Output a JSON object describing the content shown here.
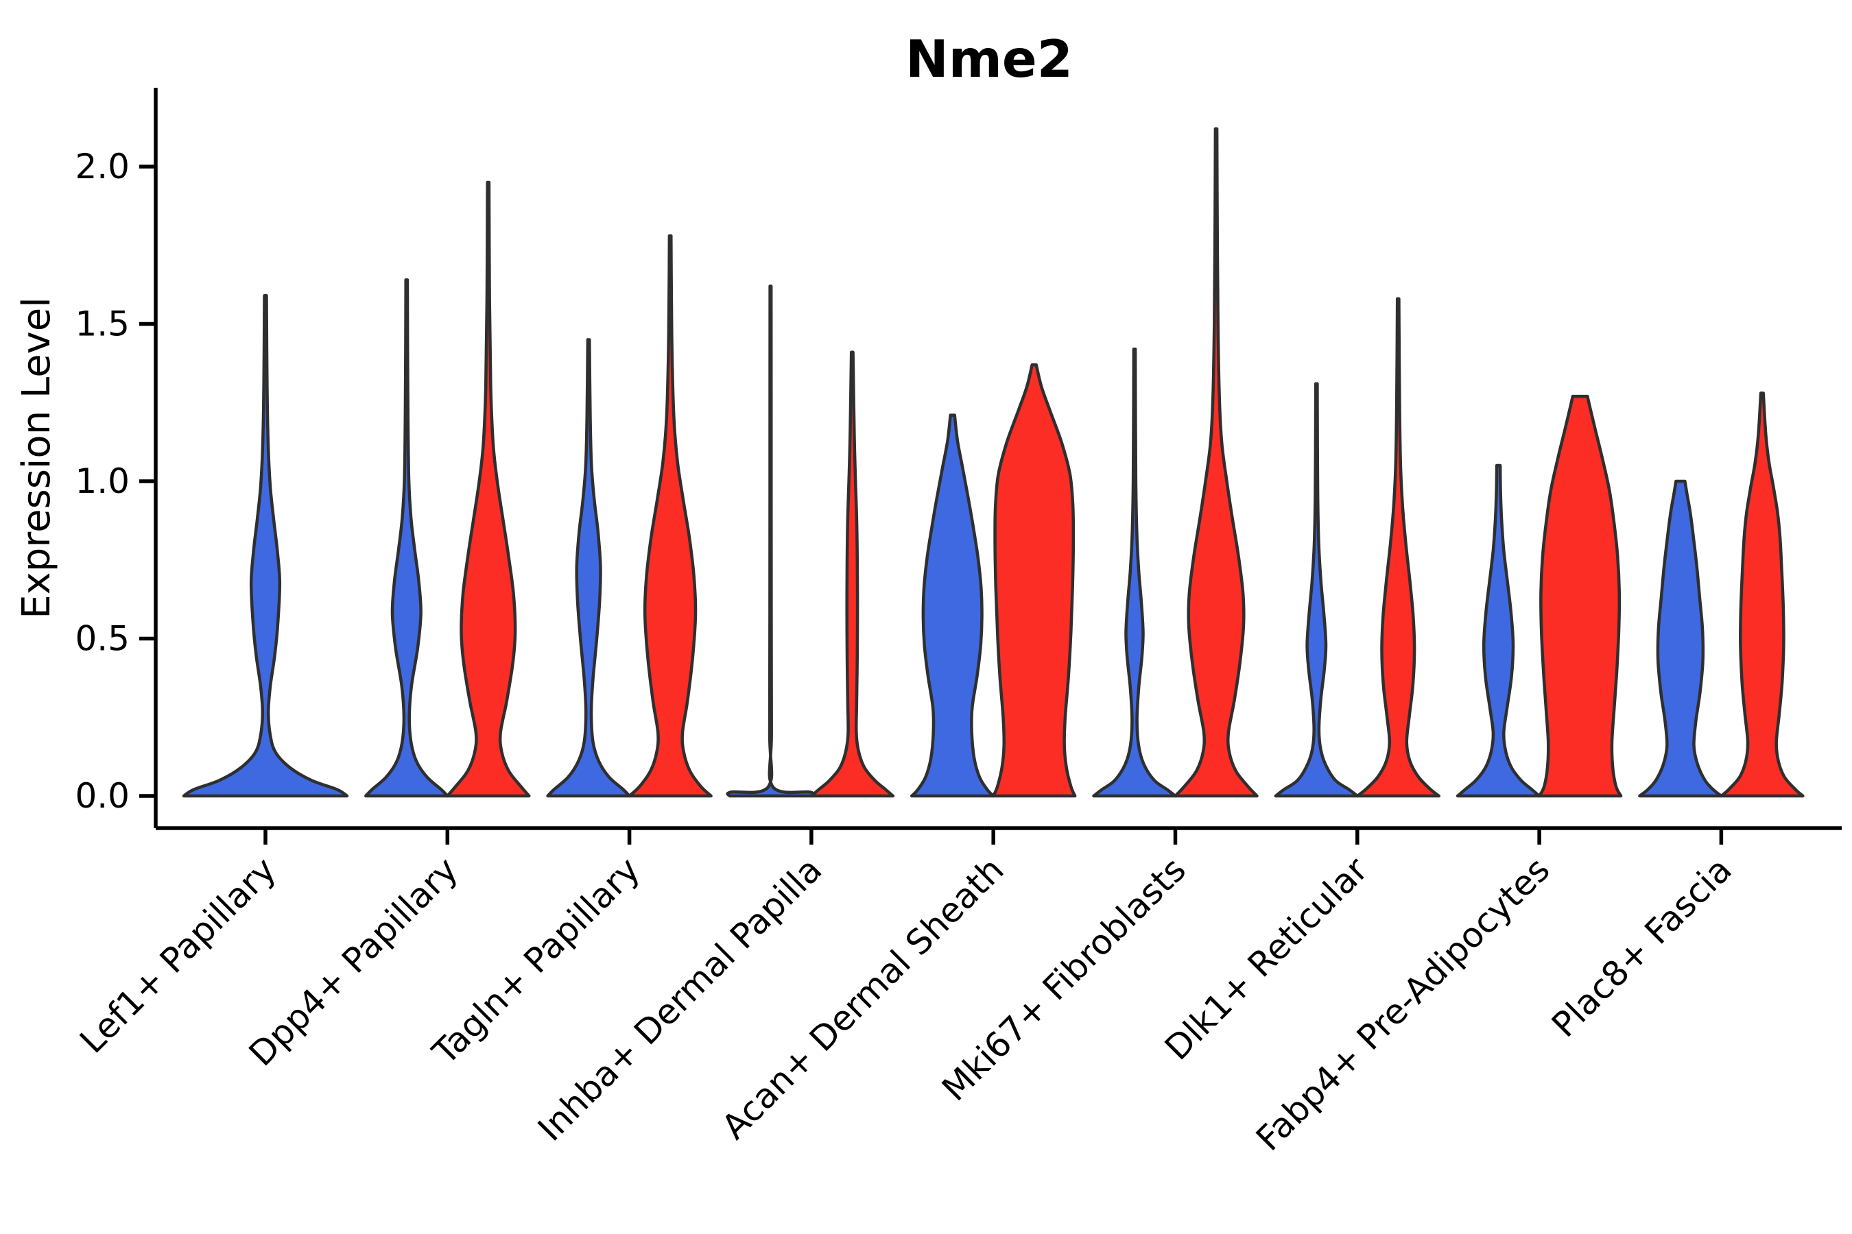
{
  "chart_data": {
    "type": "violin",
    "title": "Nme2",
    "ylabel": "Expression Level",
    "xlabel": "",
    "yticks": [
      0.0,
      0.5,
      1.0,
      1.5,
      2.0
    ],
    "ylim": [
      -0.1,
      2.25
    ],
    "grid": false,
    "legend": "none",
    "background": "#FFFFFF",
    "axis_color": "#000000",
    "outline_color": "#2F2F2F",
    "series": [
      {
        "name": "blue",
        "color": "#3F69E1"
      },
      {
        "name": "red",
        "color": "#FC2D25"
      }
    ],
    "categories": [
      "Lef1+ Papillary",
      "Dpp4+ Papillary",
      "Tagln+ Papillary",
      "Inhba+ Dermal Papilla",
      "Acan+ Dermal Sheath",
      "Mki67+ Fibroblasts",
      "Dlk1+ Reticular",
      "Fabp4+ Pre-Adipocytes",
      "Plac8+ Fascia"
    ],
    "violins": [
      {
        "category": "Lef1+ Papillary",
        "series": "blue",
        "layout": "full-width",
        "max_expression": 1.59,
        "profile": [
          [
            0,
            1
          ],
          [
            0.02,
            0.88
          ],
          [
            0.05,
            0.56
          ],
          [
            0.09,
            0.3
          ],
          [
            0.14,
            0.12
          ],
          [
            0.2,
            0.055
          ],
          [
            0.27,
            0.035
          ],
          [
            0.35,
            0.06
          ],
          [
            0.45,
            0.115
          ],
          [
            0.56,
            0.155
          ],
          [
            0.68,
            0.175
          ],
          [
            0.78,
            0.145
          ],
          [
            0.88,
            0.1
          ],
          [
            0.98,
            0.06
          ],
          [
            1.1,
            0.035
          ],
          [
            1.3,
            0.02
          ],
          [
            1.59,
            0.013
          ]
        ]
      },
      {
        "category": "Dpp4+ Papillary",
        "series": "blue",
        "layout": "left-half",
        "max_expression": 1.64,
        "profile": [
          [
            0,
            1
          ],
          [
            0.02,
            0.85
          ],
          [
            0.06,
            0.5
          ],
          [
            0.11,
            0.24
          ],
          [
            0.17,
            0.11
          ],
          [
            0.25,
            0.065
          ],
          [
            0.35,
            0.12
          ],
          [
            0.47,
            0.27
          ],
          [
            0.58,
            0.35
          ],
          [
            0.68,
            0.3
          ],
          [
            0.78,
            0.2
          ],
          [
            0.88,
            0.11
          ],
          [
            1.0,
            0.055
          ],
          [
            1.2,
            0.033
          ],
          [
            1.42,
            0.024
          ],
          [
            1.64,
            0.018
          ]
        ]
      },
      {
        "category": "Dpp4+ Papillary",
        "series": "red",
        "layout": "right-half",
        "max_expression": 1.95,
        "profile": [
          [
            0,
            1
          ],
          [
            0.03,
            0.8
          ],
          [
            0.08,
            0.5
          ],
          [
            0.14,
            0.33
          ],
          [
            0.2,
            0.3
          ],
          [
            0.3,
            0.45
          ],
          [
            0.42,
            0.6
          ],
          [
            0.52,
            0.66
          ],
          [
            0.64,
            0.62
          ],
          [
            0.76,
            0.5
          ],
          [
            0.88,
            0.36
          ],
          [
            1.0,
            0.22
          ],
          [
            1.12,
            0.12
          ],
          [
            1.3,
            0.06
          ],
          [
            1.6,
            0.03
          ],
          [
            1.95,
            0.018
          ]
        ]
      },
      {
        "category": "Tagln+ Papillary",
        "series": "blue",
        "layout": "left-half",
        "max_expression": 1.45,
        "profile": [
          [
            0,
            1
          ],
          [
            0.02,
            0.85
          ],
          [
            0.06,
            0.5
          ],
          [
            0.11,
            0.25
          ],
          [
            0.17,
            0.11
          ],
          [
            0.26,
            0.065
          ],
          [
            0.36,
            0.1
          ],
          [
            0.5,
            0.2
          ],
          [
            0.62,
            0.27
          ],
          [
            0.73,
            0.29
          ],
          [
            0.84,
            0.23
          ],
          [
            0.94,
            0.14
          ],
          [
            1.05,
            0.07
          ],
          [
            1.2,
            0.04
          ],
          [
            1.45,
            0.02
          ]
        ]
      },
      {
        "category": "Tagln+ Papillary",
        "series": "red",
        "layout": "right-half",
        "max_expression": 1.78,
        "profile": [
          [
            0,
            1
          ],
          [
            0.03,
            0.75
          ],
          [
            0.08,
            0.48
          ],
          [
            0.14,
            0.33
          ],
          [
            0.2,
            0.3
          ],
          [
            0.3,
            0.42
          ],
          [
            0.44,
            0.55
          ],
          [
            0.58,
            0.62
          ],
          [
            0.7,
            0.58
          ],
          [
            0.82,
            0.47
          ],
          [
            0.94,
            0.32
          ],
          [
            1.06,
            0.18
          ],
          [
            1.2,
            0.09
          ],
          [
            1.4,
            0.045
          ],
          [
            1.6,
            0.028
          ],
          [
            1.78,
            0.02
          ]
        ]
      },
      {
        "category": "Inhba+ Dermal Papilla",
        "series": "blue",
        "layout": "left-half",
        "max_expression": 1.62,
        "profile": [
          [
            0,
            1
          ],
          [
            0.012,
            0.98
          ],
          [
            0.03,
            0.05
          ],
          [
            0.2,
            0.022
          ],
          [
            0.6,
            0.017
          ],
          [
            1.1,
            0.015
          ],
          [
            1.62,
            0.013
          ]
        ]
      },
      {
        "category": "Inhba+ Dermal Papilla",
        "series": "red",
        "layout": "right-half",
        "max_expression": 1.41,
        "profile": [
          [
            0,
            1
          ],
          [
            0.02,
            0.82
          ],
          [
            0.05,
            0.55
          ],
          [
            0.09,
            0.3
          ],
          [
            0.14,
            0.16
          ],
          [
            0.2,
            0.1
          ],
          [
            0.3,
            0.11
          ],
          [
            0.45,
            0.125
          ],
          [
            0.6,
            0.13
          ],
          [
            0.75,
            0.125
          ],
          [
            0.88,
            0.11
          ],
          [
            1.0,
            0.08
          ],
          [
            1.15,
            0.05
          ],
          [
            1.41,
            0.02
          ]
        ]
      },
      {
        "category": "Acan+ Dermal Sheath",
        "series": "blue",
        "layout": "left-half",
        "max_expression": 1.21,
        "profile": [
          [
            0,
            1
          ],
          [
            0.02,
            0.85
          ],
          [
            0.06,
            0.66
          ],
          [
            0.12,
            0.53
          ],
          [
            0.2,
            0.47
          ],
          [
            0.28,
            0.48
          ],
          [
            0.38,
            0.6
          ],
          [
            0.48,
            0.69
          ],
          [
            0.57,
            0.72
          ],
          [
            0.66,
            0.7
          ],
          [
            0.76,
            0.62
          ],
          [
            0.86,
            0.5
          ],
          [
            0.95,
            0.38
          ],
          [
            1.04,
            0.25
          ],
          [
            1.13,
            0.12
          ],
          [
            1.21,
            0.05
          ]
        ]
      },
      {
        "category": "Acan+ Dermal Sheath",
        "series": "red",
        "layout": "right-half",
        "max_expression": 1.37,
        "profile": [
          [
            0,
            1
          ],
          [
            0.03,
            0.9
          ],
          [
            0.09,
            0.79
          ],
          [
            0.16,
            0.74
          ],
          [
            0.25,
            0.76
          ],
          [
            0.38,
            0.84
          ],
          [
            0.52,
            0.9
          ],
          [
            0.66,
            0.94
          ],
          [
            0.8,
            0.96
          ],
          [
            0.92,
            0.95
          ],
          [
            1.02,
            0.88
          ],
          [
            1.12,
            0.68
          ],
          [
            1.22,
            0.4
          ],
          [
            1.3,
            0.18
          ],
          [
            1.37,
            0.05
          ]
        ]
      },
      {
        "category": "Mki67+ Fibroblasts",
        "series": "blue",
        "layout": "left-half",
        "max_expression": 1.42,
        "profile": [
          [
            0,
            1
          ],
          [
            0.02,
            0.8
          ],
          [
            0.05,
            0.48
          ],
          [
            0.1,
            0.23
          ],
          [
            0.16,
            0.1
          ],
          [
            0.24,
            0.06
          ],
          [
            0.34,
            0.1
          ],
          [
            0.44,
            0.18
          ],
          [
            0.52,
            0.21
          ],
          [
            0.62,
            0.165
          ],
          [
            0.72,
            0.1
          ],
          [
            0.84,
            0.055
          ],
          [
            1.0,
            0.032
          ],
          [
            1.2,
            0.024
          ],
          [
            1.42,
            0.018
          ]
        ]
      },
      {
        "category": "Mki67+ Fibroblasts",
        "series": "red",
        "layout": "right-half",
        "max_expression": 2.12,
        "profile": [
          [
            0,
            1
          ],
          [
            0.03,
            0.78
          ],
          [
            0.08,
            0.48
          ],
          [
            0.14,
            0.32
          ],
          [
            0.2,
            0.3
          ],
          [
            0.3,
            0.44
          ],
          [
            0.42,
            0.58
          ],
          [
            0.54,
            0.67
          ],
          [
            0.64,
            0.66
          ],
          [
            0.76,
            0.55
          ],
          [
            0.88,
            0.4
          ],
          [
            1.0,
            0.26
          ],
          [
            1.12,
            0.14
          ],
          [
            1.26,
            0.08
          ],
          [
            1.5,
            0.045
          ],
          [
            1.8,
            0.028
          ],
          [
            2.12,
            0.018
          ]
        ]
      },
      {
        "category": "Dlk1+ Reticular",
        "series": "blue",
        "layout": "left-half",
        "max_expression": 1.31,
        "profile": [
          [
            0,
            1
          ],
          [
            0.02,
            0.8
          ],
          [
            0.05,
            0.46
          ],
          [
            0.1,
            0.22
          ],
          [
            0.15,
            0.1
          ],
          [
            0.21,
            0.06
          ],
          [
            0.3,
            0.1
          ],
          [
            0.4,
            0.19
          ],
          [
            0.48,
            0.23
          ],
          [
            0.58,
            0.18
          ],
          [
            0.68,
            0.11
          ],
          [
            0.8,
            0.055
          ],
          [
            0.94,
            0.032
          ],
          [
            1.1,
            0.024
          ],
          [
            1.31,
            0.018
          ]
        ]
      },
      {
        "category": "Dlk1+ Reticular",
        "series": "red",
        "layout": "right-half",
        "max_expression": 1.58,
        "profile": [
          [
            0,
            1
          ],
          [
            0.02,
            0.8
          ],
          [
            0.06,
            0.5
          ],
          [
            0.11,
            0.29
          ],
          [
            0.17,
            0.21
          ],
          [
            0.25,
            0.27
          ],
          [
            0.35,
            0.36
          ],
          [
            0.46,
            0.4
          ],
          [
            0.57,
            0.37
          ],
          [
            0.68,
            0.29
          ],
          [
            0.8,
            0.19
          ],
          [
            0.92,
            0.11
          ],
          [
            1.05,
            0.06
          ],
          [
            1.25,
            0.035
          ],
          [
            1.58,
            0.018
          ]
        ]
      },
      {
        "category": "Fabp4+ Pre-Adipocytes",
        "series": "blue",
        "layout": "left-half",
        "max_expression": 1.05,
        "profile": [
          [
            0,
            1
          ],
          [
            0.02,
            0.82
          ],
          [
            0.05,
            0.55
          ],
          [
            0.09,
            0.32
          ],
          [
            0.14,
            0.18
          ],
          [
            0.2,
            0.13
          ],
          [
            0.28,
            0.21
          ],
          [
            0.38,
            0.32
          ],
          [
            0.48,
            0.36
          ],
          [
            0.58,
            0.31
          ],
          [
            0.68,
            0.22
          ],
          [
            0.78,
            0.13
          ],
          [
            0.88,
            0.075
          ],
          [
            0.97,
            0.05
          ],
          [
            1.05,
            0.042
          ]
        ]
      },
      {
        "category": "Fabp4+ Pre-Adipocytes",
        "series": "red",
        "layout": "right-half",
        "max_expression": 1.27,
        "profile": [
          [
            0,
            1
          ],
          [
            0.03,
            0.88
          ],
          [
            0.09,
            0.8
          ],
          [
            0.17,
            0.78
          ],
          [
            0.27,
            0.83
          ],
          [
            0.4,
            0.9
          ],
          [
            0.53,
            0.95
          ],
          [
            0.65,
            0.96
          ],
          [
            0.76,
            0.92
          ],
          [
            0.87,
            0.83
          ],
          [
            0.97,
            0.72
          ],
          [
            1.07,
            0.55
          ],
          [
            1.16,
            0.38
          ],
          [
            1.23,
            0.25
          ],
          [
            1.27,
            0.18
          ]
        ]
      },
      {
        "category": "Plac8+ Fascia",
        "series": "blue",
        "layout": "left-half",
        "max_expression": 1.0,
        "profile": [
          [
            0,
            1
          ],
          [
            0.02,
            0.8
          ],
          [
            0.05,
            0.6
          ],
          [
            0.1,
            0.42
          ],
          [
            0.16,
            0.33
          ],
          [
            0.24,
            0.38
          ],
          [
            0.33,
            0.48
          ],
          [
            0.43,
            0.55
          ],
          [
            0.53,
            0.54
          ],
          [
            0.63,
            0.47
          ],
          [
            0.73,
            0.4
          ],
          [
            0.82,
            0.32
          ],
          [
            0.9,
            0.24
          ],
          [
            0.96,
            0.16
          ],
          [
            1.0,
            0.11
          ]
        ]
      },
      {
        "category": "Plac8+ Fascia",
        "series": "red",
        "layout": "right-half",
        "max_expression": 1.28,
        "profile": [
          [
            0,
            1
          ],
          [
            0.02,
            0.82
          ],
          [
            0.06,
            0.55
          ],
          [
            0.11,
            0.4
          ],
          [
            0.17,
            0.35
          ],
          [
            0.26,
            0.42
          ],
          [
            0.36,
            0.49
          ],
          [
            0.48,
            0.53
          ],
          [
            0.6,
            0.52
          ],
          [
            0.72,
            0.48
          ],
          [
            0.82,
            0.44
          ],
          [
            0.9,
            0.38
          ],
          [
            0.98,
            0.28
          ],
          [
            1.06,
            0.17
          ],
          [
            1.15,
            0.09
          ],
          [
            1.28,
            0.03
          ]
        ]
      }
    ]
  }
}
